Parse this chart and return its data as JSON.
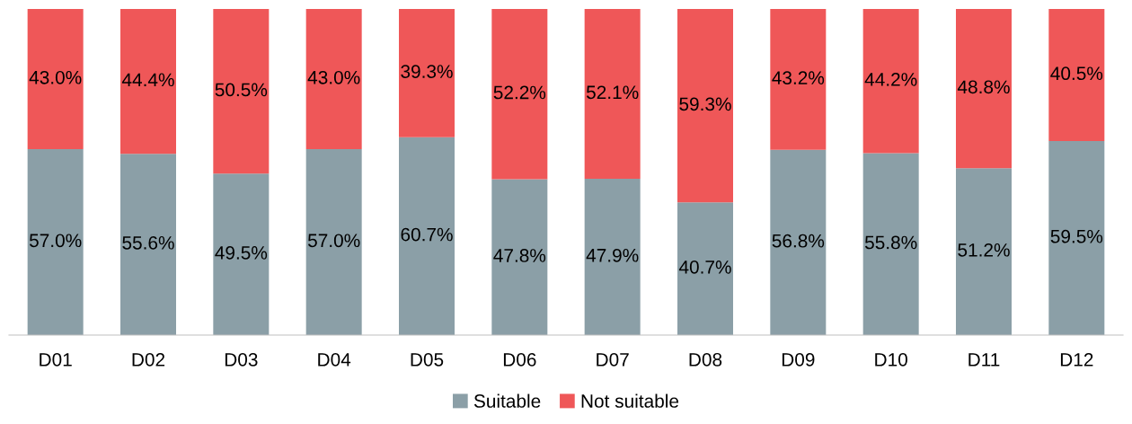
{
  "chart_data": {
    "type": "bar",
    "stacked": true,
    "categories": [
      "D01",
      "D02",
      "D03",
      "D04",
      "D05",
      "D06",
      "D07",
      "D08",
      "D09",
      "D10",
      "D11",
      "D12"
    ],
    "series": [
      {
        "name": "Suitable",
        "color": "#8b9fa7",
        "values": [
          57.0,
          55.6,
          49.5,
          57.0,
          60.7,
          47.8,
          47.9,
          40.7,
          56.8,
          55.8,
          51.2,
          59.5
        ],
        "value_labels": [
          "57.0%",
          "55.6%",
          "49.5%",
          "57.0%",
          "60.7%",
          "47.8%",
          "47.9%",
          "40.7%",
          "56.8%",
          "55.8%",
          "51.2%",
          "59.5%"
        ]
      },
      {
        "name": "Not suitable",
        "color": "#ef5758",
        "values": [
          43.0,
          44.4,
          50.5,
          43.0,
          39.3,
          52.2,
          52.1,
          59.3,
          43.2,
          44.2,
          48.8,
          40.5
        ],
        "value_labels": [
          "43.0%",
          "44.4%",
          "50.5%",
          "43.0%",
          "39.3%",
          "52.2%",
          "52.1%",
          "59.3%",
          "43.2%",
          "44.2%",
          "48.8%",
          "40.5%"
        ]
      }
    ],
    "legend": "bottom",
    "grid": false,
    "tick_labels": "x"
  }
}
